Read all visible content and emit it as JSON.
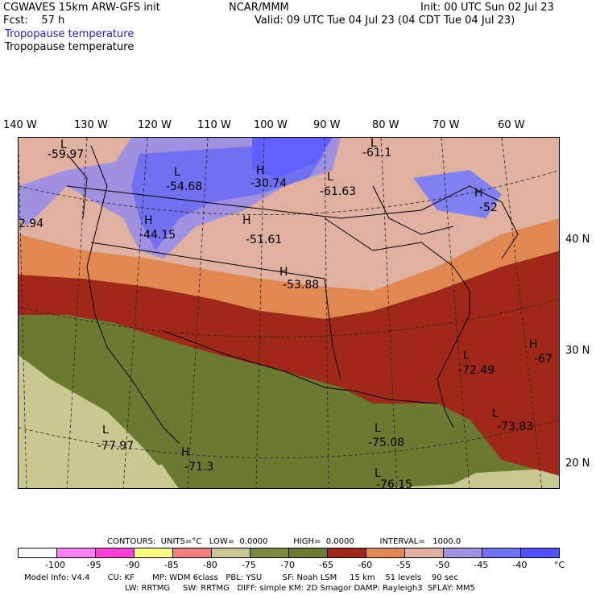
{
  "header": {
    "model": "CGWAVES 15km ARW-GFS init",
    "forecast": "Fcst:    57 h",
    "center": "NCAR/MMM",
    "init": "Init: 00 UTC Sun 02 Jul 23",
    "valid": "Valid: 09 UTC Tue 04 Jul 23 (04 CDT Tue 04 Jul 23)",
    "field_title_1": "Tropopause temperature",
    "field_title_2": "Tropopause temperature"
  },
  "lon_labels": [
    "140 W",
    "130 W",
    "120 W",
    "110 W",
    "100 W",
    "90 W",
    "80 W",
    "70 W",
    "60 W"
  ],
  "lat_labels": [
    "40 N",
    "30 N",
    "20 N"
  ],
  "highs_lows": [
    {
      "sym": "L",
      "value": "-59.97"
    },
    {
      "sym": "L",
      "value": "-54.68"
    },
    {
      "sym": "H",
      "value": "-30.74"
    },
    {
      "sym": "L",
      "value": "-61.63"
    },
    {
      "sym": "L",
      "value": "-61.1"
    },
    {
      "sym": "H",
      "value": "-52"
    },
    {
      "sym": "H",
      "value": "-44.15"
    },
    {
      "sym": "H",
      "value": "-51.61"
    },
    {
      "sym": "H",
      "value": "-53.88"
    },
    {
      "sym": "",
      "value": "2.94"
    },
    {
      "sym": "L",
      "value": "-72.49"
    },
    {
      "sym": "H",
      "value": "-67"
    },
    {
      "sym": "L",
      "value": "-73.83"
    },
    {
      "sym": "L",
      "value": "-77.97"
    },
    {
      "sym": "H",
      "value": "-71.3"
    },
    {
      "sym": "L",
      "value": "-75.08"
    },
    {
      "sym": "L",
      "value": "-76.15"
    }
  ],
  "contours_line": "CONTOURS:  UNITS=°C   LOW=  0.0000          HIGH=  0.0000          INTERVAL=   1000.0",
  "legend": {
    "colors": [
      "#ffffff",
      "#ff80ff",
      "#ff40d8",
      "#ffff80",
      "#f08080",
      "#c8c890",
      "#7a8a40",
      "#6b7a30",
      "#a02818",
      "#e08850",
      "#e0b0a0",
      "#a090e0",
      "#7070f0",
      "#5050ff"
    ],
    "ticks": [
      "-100",
      "-95",
      "-90",
      "-85",
      "-80",
      "-75",
      "-70",
      "-65",
      "-60",
      "-55",
      "-50",
      "-45",
      "-40",
      "°C"
    ]
  },
  "model_info_1": "Model Info: V4.4       CU: KF       MP: WDM 6class   PBL: YSU        SF: Noah LSM     15 km    51 levels    90 sec",
  "model_info_2": "LW: RRTMG     SW: RRTMG   DIFF: simple KM: 2D Smagor DAMP: Rayleigh3  SFLAY: MM5"
}
